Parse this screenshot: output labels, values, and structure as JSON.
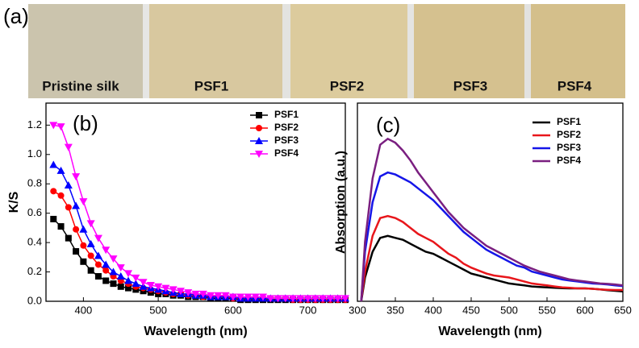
{
  "figure": {
    "panel_label": "(a)",
    "samples": [
      "Pristine silk",
      "PSF1",
      "PSF2",
      "PSF3",
      "PSF4"
    ]
  },
  "chart_data": [
    {
      "type": "line",
      "panel_label": "(b)",
      "x_label": "Wavelength (nm)",
      "y_label": "K/S",
      "x": [
        360,
        370,
        380,
        390,
        400,
        410,
        420,
        430,
        440,
        450,
        460,
        470,
        480,
        490,
        500,
        510,
        520,
        530,
        540,
        550,
        560,
        570,
        580,
        590,
        600,
        610,
        620,
        630,
        640,
        650,
        660,
        670,
        680,
        690,
        700,
        710,
        720,
        730,
        740,
        750
      ],
      "xlim": [
        350,
        750
      ],
      "xticks": [
        400,
        500,
        600,
        700
      ],
      "ylim": [
        0,
        1.35
      ],
      "yticks": [
        {
          "value": 0,
          "label": "0.0"
        },
        0.2,
        0.4,
        0.6,
        0.8,
        {
          "value": 1,
          "label": "1.0"
        },
        1.2
      ],
      "legend": "top-right",
      "series": [
        {
          "name": "PSF1",
          "color": "#000000",
          "marker": "square",
          "values": [
            0.56,
            0.51,
            0.43,
            0.34,
            0.27,
            0.21,
            0.17,
            0.14,
            0.12,
            0.1,
            0.09,
            0.08,
            0.07,
            0.06,
            0.05,
            0.05,
            0.04,
            0.04,
            0.03,
            0.03,
            0.03,
            0.02,
            0.02,
            0.02,
            0.02,
            0.01,
            0.01,
            0.01,
            0.01,
            0.01,
            0.01,
            0.01,
            0.01,
            0.01,
            0.01,
            0.01,
            0.01,
            0.01,
            0.01,
            0.01
          ]
        },
        {
          "name": "PSF2",
          "color": "#ff0000",
          "marker": "circle",
          "values": [
            0.75,
            0.72,
            0.64,
            0.49,
            0.38,
            0.31,
            0.25,
            0.21,
            0.17,
            0.14,
            0.12,
            0.1,
            0.09,
            0.08,
            0.07,
            0.06,
            0.05,
            0.05,
            0.04,
            0.04,
            0.03,
            0.03,
            0.03,
            0.03,
            0.02,
            0.02,
            0.02,
            0.02,
            0.02,
            0.02,
            0.02,
            0.02,
            0.01,
            0.01,
            0.01,
            0.01,
            0.01,
            0.01,
            0.01,
            0.01
          ]
        },
        {
          "name": "PSF3",
          "color": "#0000ff",
          "marker": "triangle-up",
          "values": [
            0.93,
            0.89,
            0.79,
            0.65,
            0.49,
            0.39,
            0.31,
            0.25,
            0.2,
            0.17,
            0.14,
            0.12,
            0.1,
            0.09,
            0.08,
            0.07,
            0.06,
            0.05,
            0.05,
            0.04,
            0.04,
            0.03,
            0.03,
            0.03,
            0.03,
            0.02,
            0.02,
            0.02,
            0.02,
            0.02,
            0.02,
            0.02,
            0.02,
            0.02,
            0.02,
            0.02,
            0.02,
            0.02,
            0.02,
            0.02
          ]
        },
        {
          "name": "PSF4",
          "color": "#ff00ff",
          "marker": "triangle-down",
          "values": [
            1.2,
            1.19,
            1.05,
            0.85,
            0.68,
            0.53,
            0.43,
            0.35,
            0.29,
            0.23,
            0.19,
            0.16,
            0.13,
            0.11,
            0.1,
            0.09,
            0.08,
            0.07,
            0.06,
            0.05,
            0.05,
            0.04,
            0.04,
            0.04,
            0.03,
            0.03,
            0.03,
            0.03,
            0.03,
            0.02,
            0.02,
            0.02,
            0.02,
            0.02,
            0.02,
            0.02,
            0.02,
            0.02,
            0.02,
            0.02
          ]
        }
      ]
    },
    {
      "type": "line",
      "panel_label": "(c)",
      "x_label": "Wavelength (nm)",
      "y_label": "Absorption (a.u.)",
      "x": [
        305,
        310,
        320,
        330,
        340,
        350,
        360,
        370,
        380,
        390,
        400,
        410,
        420,
        430,
        440,
        450,
        460,
        470,
        480,
        490,
        500,
        510,
        520,
        530,
        540,
        550,
        560,
        570,
        580,
        590,
        600,
        610,
        620,
        630,
        640,
        650
      ],
      "xlim": [
        300,
        650
      ],
      "xticks": [
        300,
        350,
        400,
        450,
        500,
        550,
        600,
        650
      ],
      "ylim": [
        0,
        1
      ],
      "legend": "top-right",
      "series": [
        {
          "name": "PSF1",
          "color": "#000000",
          "values": [
            0,
            0.12,
            0.25,
            0.32,
            0.33,
            0.32,
            0.31,
            0.29,
            0.27,
            0.25,
            0.24,
            0.22,
            0.2,
            0.18,
            0.16,
            0.14,
            0.13,
            0.12,
            0.11,
            0.1,
            0.09,
            0.085,
            0.08,
            0.075,
            0.072,
            0.07,
            0.068,
            0.066,
            0.065,
            0.065,
            0.065,
            0.063,
            0.06,
            0.056,
            0.053,
            0.05
          ]
        },
        {
          "name": "PSF2",
          "color": "#e8161b",
          "values": [
            0,
            0.15,
            0.33,
            0.42,
            0.43,
            0.42,
            0.4,
            0.37,
            0.34,
            0.32,
            0.3,
            0.27,
            0.24,
            0.22,
            0.19,
            0.17,
            0.155,
            0.14,
            0.13,
            0.125,
            0.12,
            0.11,
            0.1,
            0.09,
            0.085,
            0.08,
            0.075,
            0.07,
            0.068,
            0.065,
            0.065,
            0.063,
            0.06,
            0.058,
            0.057,
            0.057
          ]
        },
        {
          "name": "PSF3",
          "color": "#1515e8",
          "values": [
            0,
            0.25,
            0.5,
            0.63,
            0.65,
            0.64,
            0.62,
            0.6,
            0.57,
            0.54,
            0.51,
            0.47,
            0.43,
            0.39,
            0.35,
            0.32,
            0.29,
            0.26,
            0.24,
            0.22,
            0.2,
            0.18,
            0.17,
            0.15,
            0.14,
            0.13,
            0.12,
            0.11,
            0.105,
            0.1,
            0.095,
            0.09,
            0.088,
            0.085,
            0.08,
            0.077
          ]
        },
        {
          "name": "PSF4",
          "color": "#7a1f80",
          "values": [
            0,
            0.3,
            0.62,
            0.79,
            0.82,
            0.8,
            0.76,
            0.71,
            0.65,
            0.6,
            0.55,
            0.5,
            0.45,
            0.41,
            0.37,
            0.34,
            0.31,
            0.28,
            0.26,
            0.24,
            0.22,
            0.2,
            0.18,
            0.165,
            0.15,
            0.14,
            0.13,
            0.12,
            0.11,
            0.105,
            0.1,
            0.095,
            0.09,
            0.088,
            0.085,
            0.08
          ]
        }
      ]
    }
  ]
}
